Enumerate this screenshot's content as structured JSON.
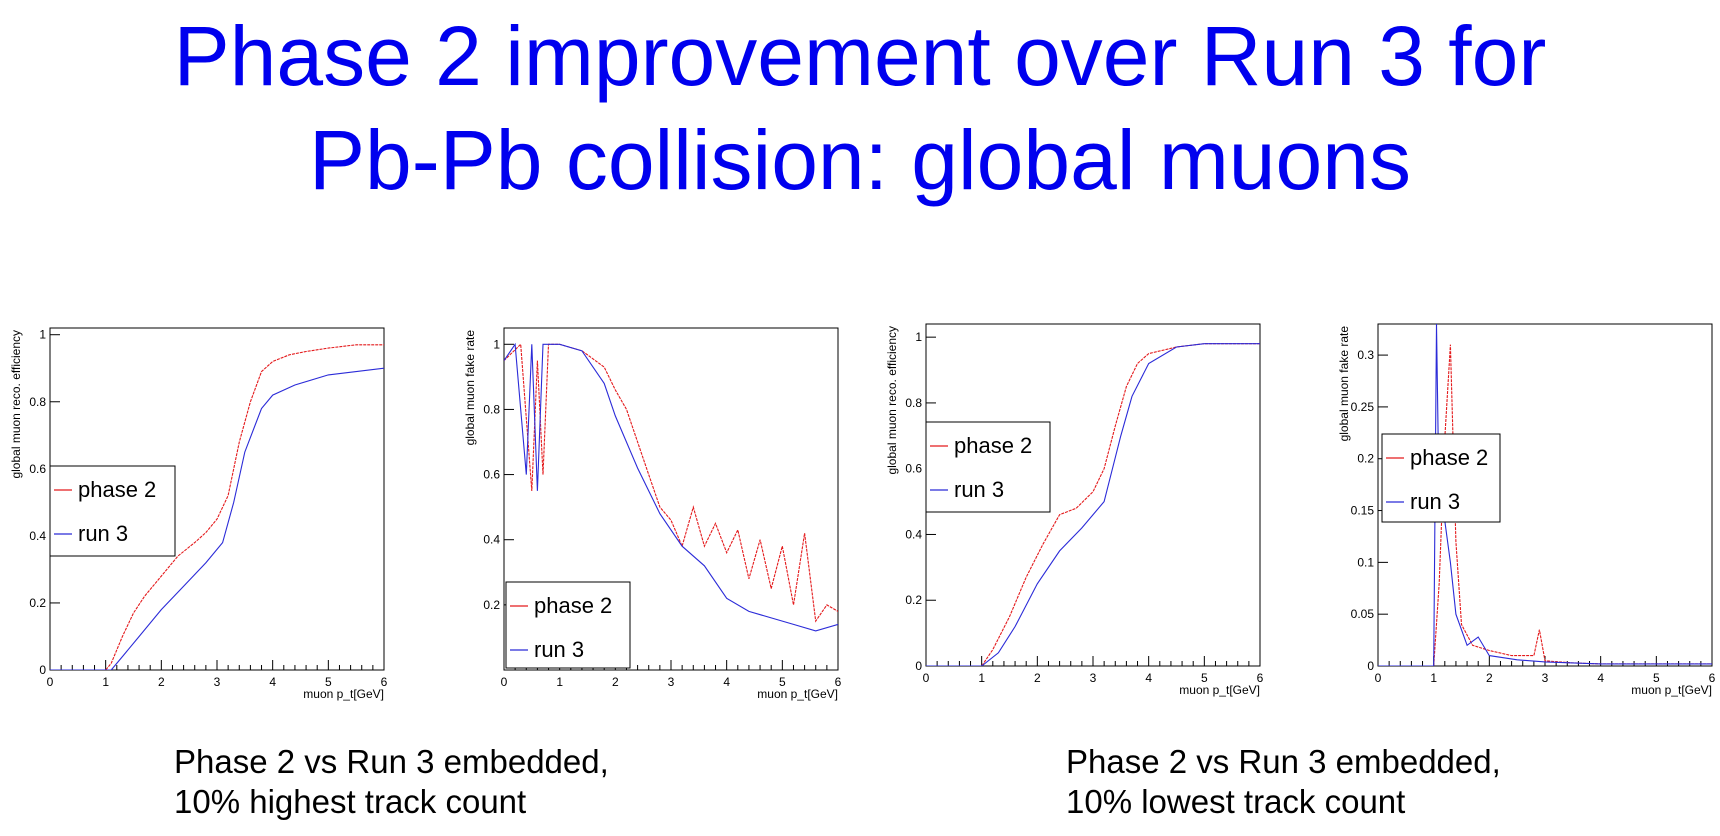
{
  "slide": {
    "title_line1": "Phase 2 improvement over Run 3 for",
    "title_line2": "Pb-Pb collision: global muons",
    "title_color": "#0000ee",
    "caption_left_line1": "Phase 2 vs Run 3 embedded,",
    "caption_left_line2": "10% highest track count",
    "caption_right_line1": "Phase 2 vs Run 3 embedded,",
    "caption_right_line2": "10% lowest track count"
  },
  "colors": {
    "phase2": "#e41a1c",
    "run3": "#2b2bd8",
    "frame": "#000000"
  },
  "chart_data": [
    {
      "type": "line",
      "xlabel": "muon p_t[GeV]",
      "ylabel": "global muon reco. efficiency",
      "xlim": [
        0,
        6
      ],
      "ylim": [
        0,
        1.02
      ],
      "xticks": [
        0,
        1,
        2,
        3,
        4,
        5,
        6
      ],
      "yticks": [
        0,
        0.2,
        0.4,
        0.6,
        0.8,
        1
      ],
      "legend": {
        "placement": "middle-left"
      },
      "series": [
        {
          "name": "phase 2",
          "color": "#e41a1c",
          "points": [
            [
              0,
              0
            ],
            [
              1,
              0
            ],
            [
              1.1,
              0.02
            ],
            [
              1.3,
              0.1
            ],
            [
              1.5,
              0.17
            ],
            [
              1.7,
              0.22
            ],
            [
              2,
              0.28
            ],
            [
              2.3,
              0.34
            ],
            [
              2.6,
              0.38
            ],
            [
              2.8,
              0.41
            ],
            [
              3,
              0.45
            ],
            [
              3.2,
              0.52
            ],
            [
              3.4,
              0.68
            ],
            [
              3.6,
              0.8
            ],
            [
              3.8,
              0.89
            ],
            [
              4,
              0.92
            ],
            [
              4.3,
              0.94
            ],
            [
              4.6,
              0.95
            ],
            [
              5,
              0.96
            ],
            [
              5.5,
              0.97
            ],
            [
              6,
              0.97
            ]
          ]
        },
        {
          "name": "run 3",
          "color": "#2b2bd8",
          "points": [
            [
              0,
              0
            ],
            [
              1.1,
              0
            ],
            [
              1.3,
              0.04
            ],
            [
              1.6,
              0.1
            ],
            [
              2,
              0.18
            ],
            [
              2.4,
              0.25
            ],
            [
              2.8,
              0.32
            ],
            [
              3.1,
              0.38
            ],
            [
              3.3,
              0.5
            ],
            [
              3.5,
              0.65
            ],
            [
              3.8,
              0.78
            ],
            [
              4,
              0.82
            ],
            [
              4.4,
              0.85
            ],
            [
              5,
              0.88
            ],
            [
              6,
              0.9
            ]
          ]
        }
      ]
    },
    {
      "type": "line",
      "xlabel": "muon p_t[GeV]",
      "ylabel": "global muon fake rate",
      "xlim": [
        0,
        6
      ],
      "ylim": [
        0,
        1.05
      ],
      "xticks": [
        0,
        1,
        2,
        3,
        4,
        5,
        6
      ],
      "yticks": [
        0.2,
        0.4,
        0.6,
        0.8,
        1
      ],
      "legend": {
        "placement": "bottom-left"
      },
      "series": [
        {
          "name": "phase 2",
          "color": "#e41a1c",
          "points": [
            [
              0,
              0.95
            ],
            [
              0.3,
              1
            ],
            [
              0.5,
              0.55
            ],
            [
              0.6,
              0.95
            ],
            [
              0.7,
              0.6
            ],
            [
              0.8,
              1
            ],
            [
              1,
              1
            ],
            [
              1.4,
              0.98
            ],
            [
              1.8,
              0.93
            ],
            [
              2,
              0.86
            ],
            [
              2.2,
              0.8
            ],
            [
              2.4,
              0.7
            ],
            [
              2.6,
              0.6
            ],
            [
              2.8,
              0.5
            ],
            [
              3,
              0.46
            ],
            [
              3.2,
              0.38
            ],
            [
              3.4,
              0.5
            ],
            [
              3.6,
              0.38
            ],
            [
              3.8,
              0.45
            ],
            [
              4,
              0.36
            ],
            [
              4.2,
              0.43
            ],
            [
              4.4,
              0.28
            ],
            [
              4.6,
              0.4
            ],
            [
              4.8,
              0.25
            ],
            [
              5,
              0.38
            ],
            [
              5.2,
              0.2
            ],
            [
              5.4,
              0.42
            ],
            [
              5.6,
              0.15
            ],
            [
              5.8,
              0.2
            ],
            [
              6,
              0.18
            ]
          ]
        },
        {
          "name": "run 3",
          "color": "#2b2bd8",
          "points": [
            [
              0,
              0.95
            ],
            [
              0.2,
              1
            ],
            [
              0.4,
              0.6
            ],
            [
              0.5,
              1
            ],
            [
              0.6,
              0.55
            ],
            [
              0.7,
              1
            ],
            [
              1,
              1
            ],
            [
              1.4,
              0.98
            ],
            [
              1.8,
              0.88
            ],
            [
              2,
              0.78
            ],
            [
              2.4,
              0.62
            ],
            [
              2.8,
              0.48
            ],
            [
              3.2,
              0.38
            ],
            [
              3.6,
              0.32
            ],
            [
              4,
              0.22
            ],
            [
              4.4,
              0.18
            ],
            [
              4.8,
              0.16
            ],
            [
              5.2,
              0.14
            ],
            [
              5.6,
              0.12
            ],
            [
              6,
              0.14
            ]
          ]
        }
      ]
    },
    {
      "type": "line",
      "xlabel": "muon p_t[GeV]",
      "ylabel": "global muon reco. efficiency",
      "xlim": [
        0,
        6
      ],
      "ylim": [
        0,
        1.04
      ],
      "xticks": [
        0,
        1,
        2,
        3,
        4,
        5,
        6
      ],
      "yticks": [
        0,
        0.2,
        0.4,
        0.6,
        0.8,
        1
      ],
      "legend": {
        "placement": "middle-left"
      },
      "series": [
        {
          "name": "phase 2",
          "color": "#e41a1c",
          "points": [
            [
              0,
              0
            ],
            [
              1,
              0
            ],
            [
              1.2,
              0.05
            ],
            [
              1.5,
              0.15
            ],
            [
              1.8,
              0.27
            ],
            [
              2.1,
              0.37
            ],
            [
              2.4,
              0.46
            ],
            [
              2.7,
              0.48
            ],
            [
              3,
              0.53
            ],
            [
              3.2,
              0.6
            ],
            [
              3.4,
              0.73
            ],
            [
              3.6,
              0.85
            ],
            [
              3.8,
              0.92
            ],
            [
              4,
              0.95
            ],
            [
              4.5,
              0.97
            ],
            [
              5,
              0.98
            ],
            [
              6,
              0.98
            ]
          ]
        },
        {
          "name": "run 3",
          "color": "#2b2bd8",
          "points": [
            [
              0,
              0
            ],
            [
              1,
              0
            ],
            [
              1.3,
              0.04
            ],
            [
              1.6,
              0.12
            ],
            [
              2,
              0.25
            ],
            [
              2.4,
              0.35
            ],
            [
              2.8,
              0.42
            ],
            [
              3.2,
              0.5
            ],
            [
              3.5,
              0.7
            ],
            [
              3.7,
              0.82
            ],
            [
              4,
              0.92
            ],
            [
              4.5,
              0.97
            ],
            [
              5,
              0.98
            ],
            [
              6,
              0.98
            ]
          ]
        }
      ]
    },
    {
      "type": "line",
      "xlabel": "muon p_t[GeV]",
      "ylabel": "global muon fake rate",
      "xlim": [
        0,
        6
      ],
      "ylim": [
        0,
        0.33
      ],
      "xticks": [
        0,
        1,
        2,
        3,
        4,
        5,
        6
      ],
      "yticks": [
        0,
        0.05,
        0.1,
        0.15,
        0.2,
        0.25,
        0.3
      ],
      "legend": {
        "placement": "middle-left"
      },
      "series": [
        {
          "name": "phase 2",
          "color": "#e41a1c",
          "points": [
            [
              0,
              0
            ],
            [
              1,
              0
            ],
            [
              1.1,
              0.08
            ],
            [
              1.2,
              0.22
            ],
            [
              1.3,
              0.31
            ],
            [
              1.4,
              0.12
            ],
            [
              1.5,
              0.04
            ],
            [
              1.7,
              0.02
            ],
            [
              2,
              0.015
            ],
            [
              2.4,
              0.01
            ],
            [
              2.8,
              0.01
            ],
            [
              2.9,
              0.035
            ],
            [
              3,
              0.005
            ],
            [
              3.5,
              0.003
            ],
            [
              4,
              0.002
            ],
            [
              5,
              0.002
            ],
            [
              6,
              0.002
            ]
          ]
        },
        {
          "name": "run 3",
          "color": "#2b2bd8",
          "points": [
            [
              0,
              0
            ],
            [
              1,
              0
            ],
            [
              1.05,
              0.33
            ],
            [
              1.1,
              0.15
            ],
            [
              1.2,
              0.14
            ],
            [
              1.3,
              0.1
            ],
            [
              1.4,
              0.05
            ],
            [
              1.6,
              0.02
            ],
            [
              1.8,
              0.028
            ],
            [
              2,
              0.01
            ],
            [
              2.5,
              0.006
            ],
            [
              3,
              0.004
            ],
            [
              4,
              0.002
            ],
            [
              6,
              0.002
            ]
          ]
        }
      ]
    }
  ]
}
